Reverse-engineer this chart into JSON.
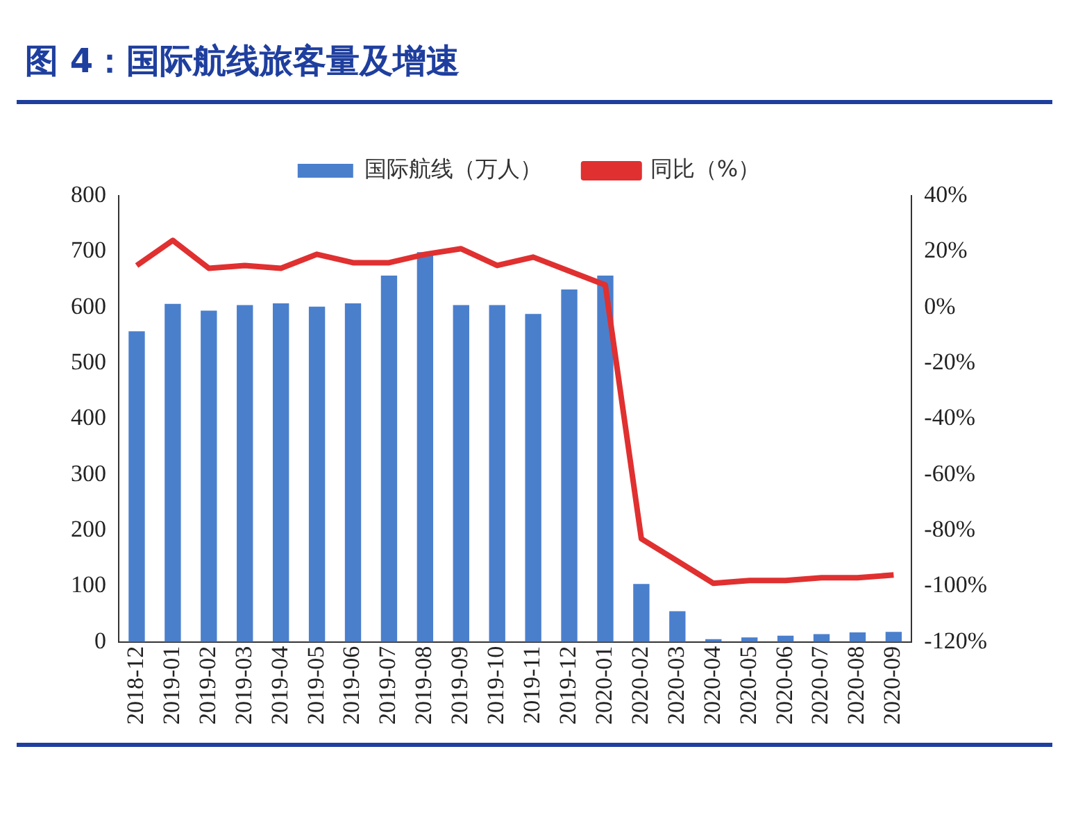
{
  "chart_data": {
    "type": "bar",
    "title": "图 4：国际航线旅客量及增速",
    "categories": [
      "2018-12",
      "2019-01",
      "2019-02",
      "2019-03",
      "2019-04",
      "2019-05",
      "2019-06",
      "2019-07",
      "2019-08",
      "2019-09",
      "2019-10",
      "2019-11",
      "2019-12",
      "2020-01",
      "2020-02",
      "2020-03",
      "2020-04",
      "2020-05",
      "2020-06",
      "2020-07",
      "2020-08",
      "2020-09"
    ],
    "series": [
      {
        "name": "国际航线（万人）",
        "color": "#4a7fcc",
        "values": [
          557,
          606,
          594,
          604,
          607,
          601,
          607,
          657,
          699,
          604,
          604,
          588,
          632,
          657,
          104,
          55,
          5,
          8,
          11,
          14,
          17,
          18
        ]
      },
      {
        "name": "同比（%）",
        "type": "line",
        "axis": "y2",
        "color": "#e03030",
        "marker": "none",
        "values": [
          15,
          24,
          14,
          15,
          14,
          19,
          16,
          16,
          19,
          21,
          15,
          18,
          13,
          8,
          -83,
          -91,
          -99,
          -98,
          -98,
          -97,
          -97,
          -96
        ]
      }
    ],
    "ylim": [
      0,
      800
    ],
    "yticks": [
      0,
      100,
      200,
      300,
      400,
      500,
      600,
      700,
      800
    ],
    "y2lim": [
      -120,
      40
    ],
    "y2ticks": [
      {
        "value": -120,
        "label": "-120%"
      },
      {
        "value": -100,
        "label": "-100%"
      },
      {
        "value": -80,
        "label": "-80%"
      },
      {
        "value": -60,
        "label": "-60%"
      },
      {
        "value": -40,
        "label": "-40%"
      },
      {
        "value": -20,
        "label": "-20%"
      },
      {
        "value": 0,
        "label": "0%"
      },
      {
        "value": 20,
        "label": "20%"
      },
      {
        "value": 40,
        "label": "40%"
      }
    ],
    "legend": "top",
    "grid": false
  }
}
